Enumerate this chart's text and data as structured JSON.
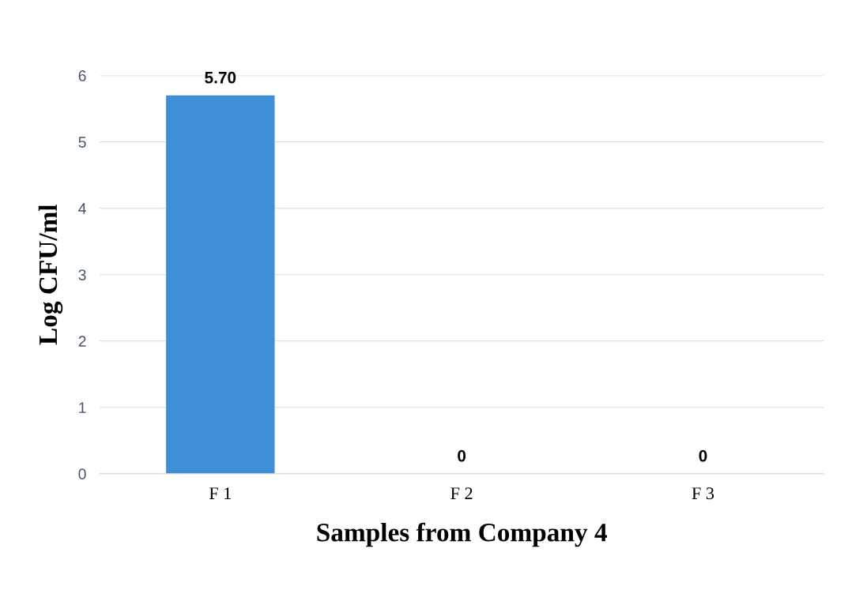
{
  "chart_data": {
    "type": "bar",
    "xlabel": "Samples from Company 4",
    "ylabel": "Log CFU/ml",
    "categories": [
      "F 1",
      "F 2",
      "F 3"
    ],
    "values": [
      5.7,
      0,
      0
    ],
    "value_labels": [
      "5.70",
      "0",
      "0"
    ],
    "color": "#3f8fd6",
    "ylim": [
      0,
      6
    ],
    "yticks": [
      0,
      1,
      2,
      3,
      4,
      5,
      6
    ],
    "grid": "y",
    "legend": false
  }
}
